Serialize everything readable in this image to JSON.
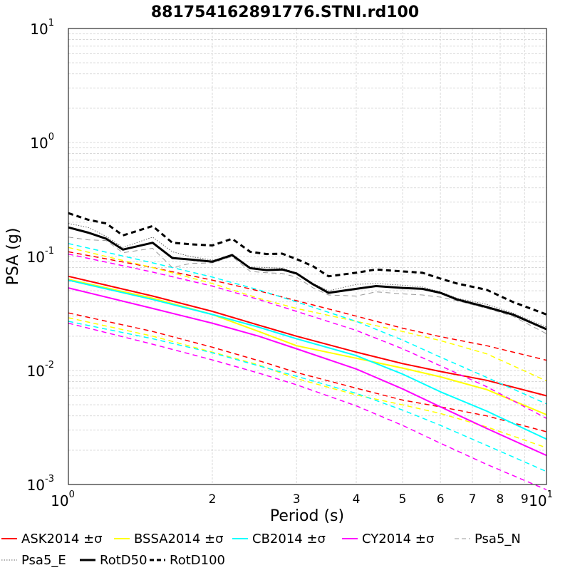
{
  "chart_data": {
    "type": "line",
    "title": "881754162891776.STNI.rd100",
    "xlabel": "Period (s)",
    "ylabel": "PSA (g)",
    "xscale": "log",
    "yscale": "log",
    "xlim": [
      1,
      10
    ],
    "ylim": [
      0.001,
      10
    ],
    "grid": true,
    "legend_placement": "bottom",
    "x_major_ticks": [
      {
        "value": 1,
        "base": "10",
        "exp": "0"
      },
      {
        "value": 10,
        "base": "10",
        "exp": "1"
      }
    ],
    "x_minor_ticks": [
      {
        "value": 2,
        "label": "2"
      },
      {
        "value": 3,
        "label": "3"
      },
      {
        "value": 4,
        "label": "4"
      },
      {
        "value": 5,
        "label": "5"
      },
      {
        "value": 6,
        "label": "6"
      },
      {
        "value": 7,
        "label": "7"
      },
      {
        "value": 8,
        "label": "8"
      },
      {
        "value": 9,
        "label": "9"
      }
    ],
    "y_major_ticks": [
      {
        "value": 0.001,
        "base": "10",
        "exp": "-3"
      },
      {
        "value": 0.01,
        "base": "10",
        "exp": "-2"
      },
      {
        "value": 0.1,
        "base": "10",
        "exp": "-1"
      },
      {
        "value": 1,
        "base": "10",
        "exp": "0"
      },
      {
        "value": 10,
        "base": "10",
        "exp": "1"
      }
    ],
    "series": [
      {
        "name": "ASK2014 ±σ",
        "color": "#ff0000",
        "style": "solid",
        "width": 2,
        "x": [
          1,
          1.5,
          2,
          2.5,
          3,
          4,
          5,
          6,
          7.5,
          10
        ],
        "y": [
          0.067,
          0.045,
          0.033,
          0.025,
          0.02,
          0.0145,
          0.0115,
          0.0098,
          0.0082,
          0.006
        ]
      },
      {
        "name": "",
        "color": "#ff0000",
        "style": "dashed",
        "width": 1.5,
        "x": [
          1,
          1.5,
          2,
          2.5,
          3,
          4,
          5,
          6,
          7.5,
          10
        ],
        "y": [
          0.11,
          0.08,
          0.062,
          0.05,
          0.041,
          0.03,
          0.0235,
          0.0198,
          0.0165,
          0.0123
        ]
      },
      {
        "name": "",
        "color": "#ff0000",
        "style": "dashed",
        "width": 1.5,
        "x": [
          1,
          1.5,
          2,
          2.5,
          3,
          4,
          5,
          6,
          7.5,
          10
        ],
        "y": [
          0.032,
          0.022,
          0.016,
          0.0122,
          0.0096,
          0.007,
          0.0055,
          0.0048,
          0.004,
          0.0029
        ]
      },
      {
        "name": "BSSA2014 ±σ",
        "color": "#ffff00",
        "style": "solid",
        "width": 2,
        "x": [
          1,
          1.5,
          2,
          2.5,
          3,
          4,
          5,
          6,
          7.5,
          10
        ],
        "y": [
          0.063,
          0.043,
          0.031,
          0.022,
          0.0165,
          0.0128,
          0.0105,
          0.0088,
          0.0068,
          0.0041
        ]
      },
      {
        "name": "",
        "color": "#ffff00",
        "style": "dashed",
        "width": 1.5,
        "x": [
          1,
          1.5,
          2,
          2.5,
          3,
          4,
          5,
          6,
          7.5,
          10
        ],
        "y": [
          0.12,
          0.08,
          0.058,
          0.043,
          0.035,
          0.027,
          0.022,
          0.0183,
          0.014,
          0.0081
        ]
      },
      {
        "name": "",
        "color": "#ffff00",
        "style": "dashed",
        "width": 1.5,
        "x": [
          1,
          1.5,
          2,
          2.5,
          3,
          4,
          5,
          6,
          7.5,
          10
        ],
        "y": [
          0.029,
          0.02,
          0.0145,
          0.0112,
          0.0085,
          0.0061,
          0.005,
          0.0042,
          0.0032,
          0.0021
        ]
      },
      {
        "name": "CB2014 ±σ",
        "color": "#00ffff",
        "style": "solid",
        "width": 2,
        "x": [
          1,
          1.5,
          2,
          2.5,
          3,
          4,
          5,
          6,
          7.5,
          10
        ],
        "y": [
          0.062,
          0.042,
          0.031,
          0.024,
          0.019,
          0.0135,
          0.0093,
          0.0065,
          0.0044,
          0.0025
        ]
      },
      {
        "name": "",
        "color": "#00ffff",
        "style": "dashed",
        "width": 1.5,
        "x": [
          1,
          1.5,
          2,
          2.5,
          3,
          4,
          5,
          6,
          7.5,
          10
        ],
        "y": [
          0.13,
          0.088,
          0.066,
          0.051,
          0.04,
          0.027,
          0.0185,
          0.0131,
          0.0087,
          0.0051
        ]
      },
      {
        "name": "",
        "color": "#00ffff",
        "style": "dashed",
        "width": 1.5,
        "x": [
          1,
          1.5,
          2,
          2.5,
          3,
          4,
          5,
          6,
          7.5,
          10
        ],
        "y": [
          0.027,
          0.019,
          0.0143,
          0.011,
          0.0089,
          0.0063,
          0.0045,
          0.0033,
          0.0022,
          0.0013
        ]
      },
      {
        "name": "CY2014 ±σ",
        "color": "#ff00ff",
        "style": "solid",
        "width": 2,
        "x": [
          1,
          1.5,
          2,
          2.5,
          3,
          4,
          5,
          6,
          7.5,
          10
        ],
        "y": [
          0.053,
          0.035,
          0.026,
          0.02,
          0.0155,
          0.0103,
          0.0069,
          0.0048,
          0.0031,
          0.0018
        ]
      },
      {
        "name": "",
        "color": "#ff00ff",
        "style": "dashed",
        "width": 1.5,
        "x": [
          1,
          1.5,
          2,
          2.5,
          3,
          4,
          5,
          6,
          7.5,
          10
        ],
        "y": [
          0.105,
          0.073,
          0.055,
          0.042,
          0.033,
          0.0225,
          0.0155,
          0.011,
          0.0072,
          0.0038
        ]
      },
      {
        "name": "",
        "color": "#ff00ff",
        "style": "dashed",
        "width": 1.5,
        "x": [
          1,
          1.5,
          2,
          2.5,
          3,
          4,
          5,
          6,
          7.5,
          10
        ],
        "y": [
          0.026,
          0.017,
          0.0124,
          0.0095,
          0.0075,
          0.0049,
          0.0033,
          0.0023,
          0.0015,
          0.0009
        ]
      },
      {
        "name": "Psa5_N",
        "color": "#999999",
        "style": "dashed",
        "width": 1,
        "x": [
          1,
          1.1,
          1.2,
          1.3,
          1.5,
          1.65,
          1.8,
          2.0,
          2.2,
          2.4,
          2.6,
          2.8,
          3.0,
          3.25,
          3.5,
          4.0,
          4.4,
          5.0,
          5.5,
          6.0,
          6.5,
          7.5,
          8.5,
          10
        ],
        "y": [
          0.148,
          0.14,
          0.138,
          0.108,
          0.118,
          0.08,
          0.087,
          0.088,
          0.1,
          0.074,
          0.072,
          0.071,
          0.066,
          0.053,
          0.046,
          0.045,
          0.049,
          0.047,
          0.046,
          0.044,
          0.041,
          0.035,
          0.03,
          0.021
        ]
      },
      {
        "name": "Psa5_E",
        "color": "#666666",
        "style": "dotted",
        "width": 1,
        "x": [
          1,
          1.1,
          1.2,
          1.3,
          1.5,
          1.65,
          1.8,
          2.0,
          2.2,
          2.4,
          2.6,
          2.8,
          3.0,
          3.25,
          3.5,
          4.0,
          4.4,
          5.0,
          5.5,
          6.0,
          6.5,
          7.5,
          8.5,
          10
        ],
        "y": [
          0.195,
          0.18,
          0.15,
          0.12,
          0.148,
          0.11,
          0.1,
          0.093,
          0.1,
          0.081,
          0.08,
          0.079,
          0.072,
          0.058,
          0.05,
          0.057,
          0.058,
          0.056,
          0.054,
          0.049,
          0.043,
          0.038,
          0.032,
          0.024
        ]
      },
      {
        "name": "RotD50",
        "color": "#000000",
        "style": "solid",
        "width": 3,
        "x": [
          1,
          1.1,
          1.2,
          1.3,
          1.5,
          1.65,
          1.8,
          2.0,
          2.2,
          2.4,
          2.6,
          2.8,
          3.0,
          3.25,
          3.5,
          4.0,
          4.4,
          5.0,
          5.5,
          6.0,
          6.5,
          7.5,
          8.5,
          10
        ],
        "y": [
          0.18,
          0.162,
          0.143,
          0.115,
          0.132,
          0.097,
          0.094,
          0.09,
          0.103,
          0.079,
          0.076,
          0.077,
          0.071,
          0.057,
          0.048,
          0.052,
          0.055,
          0.053,
          0.052,
          0.048,
          0.042,
          0.036,
          0.031,
          0.023
        ]
      },
      {
        "name": "RotD100",
        "color": "#000000",
        "style": "dashed",
        "width": 3,
        "x": [
          1,
          1.1,
          1.2,
          1.3,
          1.5,
          1.65,
          1.8,
          2.0,
          2.2,
          2.4,
          2.6,
          2.8,
          3.0,
          3.25,
          3.5,
          4.0,
          4.4,
          5.0,
          5.5,
          6.0,
          6.5,
          7.5,
          8.5,
          10
        ],
        "y": [
          0.24,
          0.21,
          0.195,
          0.153,
          0.185,
          0.132,
          0.128,
          0.125,
          0.143,
          0.11,
          0.105,
          0.106,
          0.095,
          0.082,
          0.067,
          0.072,
          0.077,
          0.074,
          0.072,
          0.064,
          0.058,
          0.051,
          0.04,
          0.031
        ]
      }
    ]
  }
}
